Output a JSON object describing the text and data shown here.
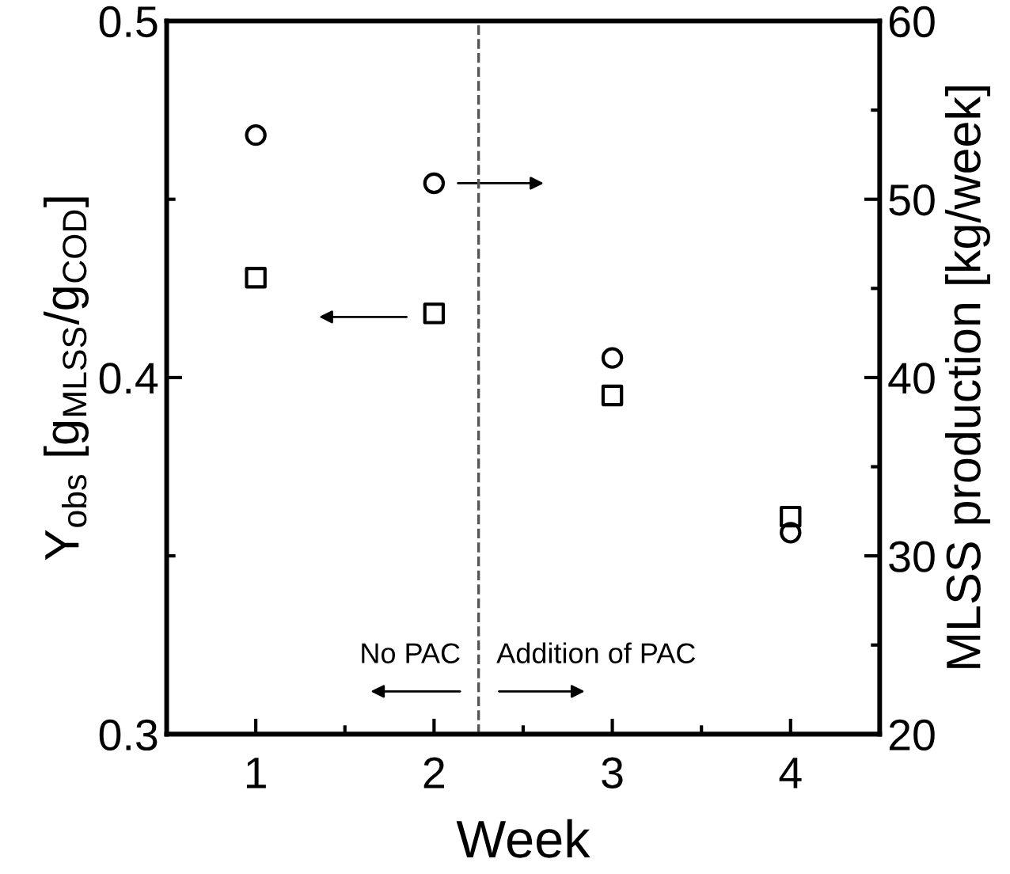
{
  "chart_data": {
    "type": "scatter",
    "xlabel": "Week",
    "ylabel": "Y$_{obs}$ [g$_{MLSS}$/g$_{COD}$]",
    "y2label": "MLSS production [kg/week]",
    "x": [
      1,
      2,
      3,
      4
    ],
    "series": [
      {
        "marker": "square",
        "color": "#000000",
        "values": [
          0.428,
          0.418,
          0.395,
          0.361
        ]
      },
      {
        "marker": "circle",
        "color": "#000000",
        "axis": "y2",
        "values": [
          53.6,
          50.9,
          41.1,
          31.3
        ]
      }
    ],
    "xlim": [
      0.5,
      4.5
    ],
    "xticks": [
      1,
      2,
      3,
      4
    ],
    "ylim": [
      0.3,
      0.5
    ],
    "yticks": [
      0.3,
      0.4,
      0.5
    ],
    "y2lim": [
      20,
      60
    ],
    "y2ticks": [
      20,
      30,
      40,
      50,
      60
    ],
    "ref_lines": [
      {
        "axis": "x",
        "value": 2.25,
        "color": "#555555",
        "line_style": "dashed"
      }
    ],
    "annotations": [
      "No PAC",
      "Addition of PAC"
    ],
    "grid": false,
    "legend": false
  }
}
